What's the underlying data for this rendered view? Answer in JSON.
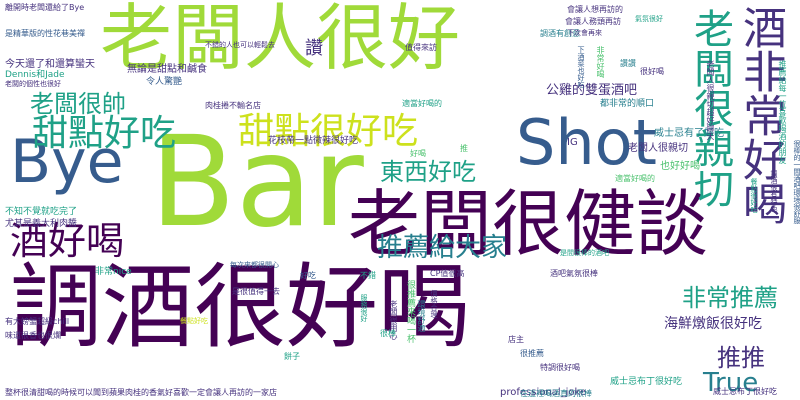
{
  "palette": {
    "lime": "#a0da39",
    "yellow_green": "#cde11d",
    "green": "#4ac16d",
    "teal": "#1fa187",
    "blue_teal": "#277f8e",
    "blue": "#365c8d",
    "indigo": "#46327e",
    "purple": "#440154",
    "yellow": "#fde725"
  },
  "words": [
    {
      "id": "w1",
      "text": "老闆人很好",
      "color": "lime",
      "orient": "h"
    },
    {
      "id": "w2",
      "text": "Bar",
      "color": "lime",
      "orient": "h"
    },
    {
      "id": "w3",
      "text": "調酒很好喝",
      "color": "purple",
      "orient": "h"
    },
    {
      "id": "w4",
      "text": "老闆很健談",
      "color": "purple",
      "orient": "h"
    },
    {
      "id": "w5",
      "text": "Shot",
      "color": "blue",
      "orient": "h"
    },
    {
      "id": "w6",
      "text": "Bye",
      "color": "blue",
      "orient": "h"
    },
    {
      "id": "w7",
      "text": "酒非常好喝",
      "color": "indigo",
      "orient": "v"
    },
    {
      "id": "w8",
      "text": "老闆很親切",
      "color": "teal",
      "orient": "v"
    },
    {
      "id": "w9",
      "text": "酒好喝",
      "color": "purple",
      "orient": "h"
    },
    {
      "id": "w10",
      "text": "甜點好吃",
      "color": "teal",
      "orient": "h"
    },
    {
      "id": "w11",
      "text": "甜點很好吃",
      "color": "yellow_green",
      "orient": "h"
    },
    {
      "id": "w12",
      "text": "老闆很帥",
      "color": "teal",
      "orient": "h"
    },
    {
      "id": "w13",
      "text": "推薦給大家",
      "color": "blue_teal",
      "orient": "h"
    },
    {
      "id": "w14",
      "text": "東西好吃",
      "color": "teal",
      "orient": "h"
    },
    {
      "id": "w15",
      "text": "非常推薦",
      "color": "teal",
      "orient": "h"
    },
    {
      "id": "w16",
      "text": "推推",
      "color": "indigo",
      "orient": "h"
    },
    {
      "id": "w17",
      "text": "True",
      "color": "blue_teal",
      "orient": "h"
    },
    {
      "id": "w18",
      "text": "海鮮燉飯很好吃",
      "color": "indigo",
      "orient": "h"
    },
    {
      "id": "w19",
      "text": "讚",
      "color": "indigo",
      "orient": "h"
    },
    {
      "id": "w20",
      "text": "公雞的雙蛋酒吧",
      "color": "indigo",
      "orient": "h"
    },
    {
      "id": "w21",
      "text": "老闆人很親切",
      "color": "indigo",
      "orient": "h"
    },
    {
      "id": "w22",
      "text": "IG",
      "color": "indigo",
      "orient": "h"
    },
    {
      "id": "w23",
      "text": "也好好喝",
      "color": "green",
      "orient": "h"
    },
    {
      "id": "w24",
      "text": "威士忌有了好吃",
      "color": "blue_teal",
      "orient": "h"
    },
    {
      "id": "w25",
      "text": "都非常的順口",
      "color": "blue_teal",
      "orient": "h"
    },
    {
      "id": "w26",
      "text": "今天還了和還算蠻天",
      "color": "indigo",
      "orient": "h"
    },
    {
      "id": "w27",
      "text": "無論是甜點和鹹食",
      "color": "indigo",
      "orient": "h"
    },
    {
      "id": "w28",
      "text": "令人驚艷",
      "color": "blue",
      "orient": "h"
    },
    {
      "id": "w29",
      "text": "Dennis和Jade",
      "color": "teal",
      "orient": "h"
    },
    {
      "id": "w30",
      "text": "老闆的個性也很好",
      "color": "indigo",
      "orient": "h"
    },
    {
      "id": "w31",
      "text": "離開時老闆還給了Bye",
      "color": "indigo",
      "orient": "h"
    },
    {
      "id": "w32",
      "text": "是精華版的性花巷美禪",
      "color": "blue",
      "orient": "h"
    },
    {
      "id": "w33",
      "text": "花枝帶一點微辣很好吃",
      "color": "indigo",
      "orient": "h"
    },
    {
      "id": "w34",
      "text": "肉桂捲不輸名店",
      "color": "indigo",
      "orient": "h"
    },
    {
      "id": "w35",
      "text": "適當好喝的",
      "color": "teal",
      "orient": "h"
    },
    {
      "id": "w36",
      "text": "不知不覺就吃完了",
      "color": "teal",
      "orient": "h"
    },
    {
      "id": "w37",
      "text": "尤其是義大利肉醬",
      "color": "indigo",
      "orient": "h"
    },
    {
      "id": "w38",
      "text": "非常nice",
      "color": "teal",
      "orient": "h"
    },
    {
      "id": "w39",
      "text": "有大螃蟹超級chill",
      "color": "indigo",
      "orient": "h"
    },
    {
      "id": "w40",
      "text": "味道很香也很爛",
      "color": "indigo",
      "orient": "h"
    },
    {
      "id": "w41",
      "text": "整杯很清甜喝的時候可以聞到蘋果肉桂的香氣好喜歡一定會讓人再訪的一家店",
      "color": "indigo",
      "orient": "h"
    },
    {
      "id": "w42",
      "text": "professional_joke",
      "color": "indigo",
      "orient": "h"
    },
    {
      "id": "w43",
      "text": "威士忌布丁很好吃",
      "color": "indigo",
      "orient": "h"
    },
    {
      "id": "w44",
      "text": "店主",
      "color": "indigo",
      "orient": "h"
    },
    {
      "id": "w45",
      "text": "會讓人想再訪的",
      "color": "indigo",
      "orient": "h"
    },
    {
      "id": "w46",
      "text": "餅子",
      "color": "teal",
      "orient": "h"
    },
    {
      "id": "w47",
      "text": "是很值得一去",
      "color": "indigo",
      "orient": "h"
    },
    {
      "id": "w48",
      "text": "老闆人很親切超好聊天",
      "color": "indigo",
      "orient": "v"
    },
    {
      "id": "w49",
      "text": "推薦給每一位喜歡喝酒的朋友",
      "color": "teal",
      "orient": "v"
    },
    {
      "id": "w50",
      "text": "很棒的一間酒吧環境很舒服",
      "color": "blue",
      "orient": "v"
    },
    {
      "id": "w51",
      "text": "會讓人務頭再訪",
      "color": "indigo",
      "orient": "h"
    },
    {
      "id": "w52",
      "text": "值得來訪",
      "color": "indigo",
      "orient": "h"
    },
    {
      "id": "w53",
      "text": "不錯的人也可以輕鬆去",
      "color": "indigo",
      "orient": "h"
    },
    {
      "id": "w54",
      "text": "適當好喝的",
      "color": "green",
      "orient": "h"
    },
    {
      "id": "w55",
      "text": "每次來都很開心",
      "color": "blue",
      "orient": "h"
    },
    {
      "id": "w56",
      "text": "餐點好吃",
      "color": "yellow_green",
      "orient": "h"
    },
    {
      "id": "w57",
      "text": "是間很棒的酒吧",
      "color": "teal",
      "orient": "h"
    },
    {
      "id": "w58",
      "text": "調酒有創意",
      "color": "blue_teal",
      "orient": "h"
    },
    {
      "id": "w59",
      "text": "下次會再來",
      "color": "indigo",
      "orient": "h"
    },
    {
      "id": "w60",
      "text": "氣氛很好",
      "color": "teal",
      "orient": "h"
    },
    {
      "id": "w61",
      "text": "很推薦來喝一杯",
      "color": "green",
      "orient": "v"
    },
    {
      "id": "w62",
      "text": "老闆很用心",
      "color": "indigo",
      "orient": "v"
    },
    {
      "id": "w63",
      "text": "環境舒適",
      "color": "blue_teal",
      "orient": "v"
    },
    {
      "id": "w64",
      "text": "服務很好",
      "color": "teal",
      "orient": "v"
    },
    {
      "id": "w65",
      "text": "價格合理",
      "color": "indigo",
      "orient": "v"
    },
    {
      "id": "w66",
      "text": "非常好喝",
      "color": "green",
      "orient": "v"
    },
    {
      "id": "w67",
      "text": "下酒菜也好吃",
      "color": "blue",
      "orient": "v"
    },
    {
      "id": "w68",
      "text": "調酒很有特色",
      "color": "indigo",
      "orient": "v"
    },
    {
      "id": "w69",
      "text": "餐點很好吃",
      "color": "teal",
      "orient": "v"
    },
    {
      "id": "w70",
      "text": "酒吧氣氛很棒",
      "color": "indigo",
      "orient": "h"
    },
    {
      "id": "w71",
      "text": "CP值很高",
      "color": "indigo",
      "orient": "h"
    },
    {
      "id": "w72",
      "text": "威士忌布丁很好吃",
      "color": "teal",
      "orient": "h"
    },
    {
      "id": "w73",
      "text": "特調很好喝",
      "color": "indigo",
      "orient": "h"
    },
    {
      "id": "w74",
      "text": "在這裡喝酒真的很棒",
      "color": "blue_teal",
      "orient": "h"
    },
    {
      "id": "w75",
      "text": "很推薦",
      "color": "blue",
      "orient": "h"
    },
    {
      "id": "w76",
      "text": "好喝",
      "color": "green",
      "orient": "h"
    },
    {
      "id": "w77",
      "text": "推",
      "color": "green",
      "orient": "h"
    },
    {
      "id": "w78",
      "text": "讚讚",
      "color": "blue_teal",
      "orient": "h"
    },
    {
      "id": "w79",
      "text": "很好喝",
      "color": "indigo",
      "orient": "h"
    },
    {
      "id": "w80",
      "text": "不錯",
      "color": "teal",
      "orient": "h"
    },
    {
      "id": "w81",
      "text": "好吃",
      "color": "blue",
      "orient": "h"
    },
    {
      "id": "w82",
      "text": "很棒",
      "color": "teal",
      "orient": "h"
    }
  ]
}
